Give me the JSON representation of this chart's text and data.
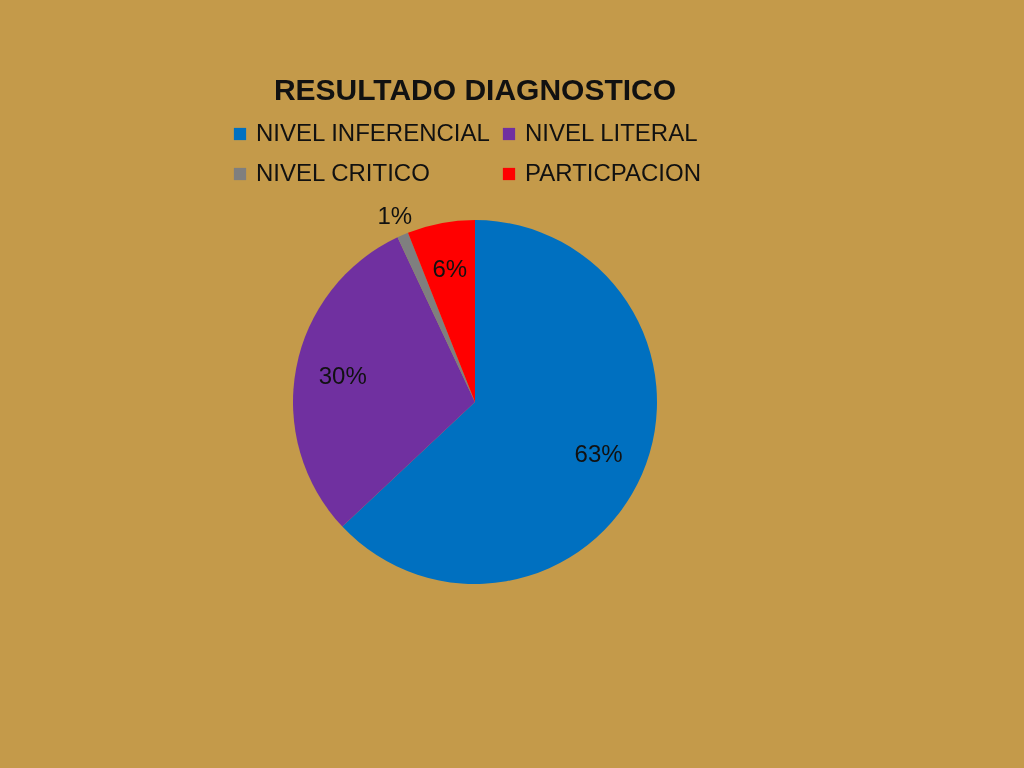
{
  "chart_data": {
    "type": "pie",
    "title": "RESULTADO DIAGNOSTICO",
    "categories": [
      "NIVEL INFERENCIAL",
      "NIVEL  LITERAL",
      "NIVEL CRITICO",
      "PARTICPACION"
    ],
    "values": [
      63,
      30,
      1,
      6
    ],
    "colors": [
      "#0070c0",
      "#7030a0",
      "#7f7f7f",
      "#ff0000"
    ],
    "value_labels": [
      "63%",
      "30%",
      "1%",
      "6%"
    ],
    "legend": "top"
  }
}
